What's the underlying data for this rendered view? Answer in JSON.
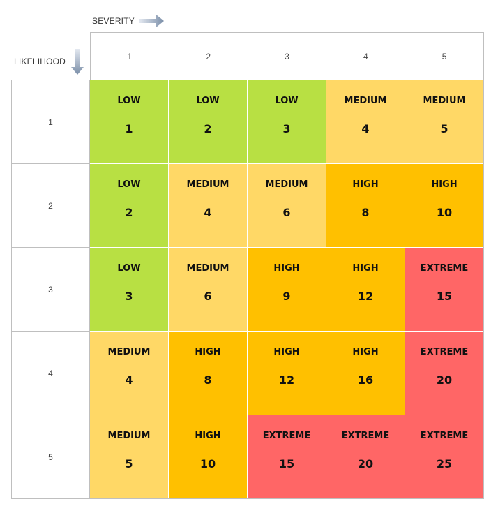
{
  "labels": {
    "severity": "SEVERITY",
    "likelihood": "LIKELIHOOD"
  },
  "columns": [
    "1",
    "2",
    "3",
    "4",
    "5"
  ],
  "rows": [
    {
      "label": "1",
      "cells": [
        {
          "level": "LOW",
          "score": "1"
        },
        {
          "level": "LOW",
          "score": "2"
        },
        {
          "level": "LOW",
          "score": "3"
        },
        {
          "level": "MEDIUM",
          "score": "4"
        },
        {
          "level": "MEDIUM",
          "score": "5"
        }
      ]
    },
    {
      "label": "2",
      "cells": [
        {
          "level": "LOW",
          "score": "2"
        },
        {
          "level": "MEDIUM",
          "score": "4"
        },
        {
          "level": "MEDIUM",
          "score": "6"
        },
        {
          "level": "HIGH",
          "score": "8"
        },
        {
          "level": "HIGH",
          "score": "10"
        }
      ]
    },
    {
      "label": "3",
      "cells": [
        {
          "level": "LOW",
          "score": "3"
        },
        {
          "level": "MEDIUM",
          "score": "6"
        },
        {
          "level": "HIGH",
          "score": "9"
        },
        {
          "level": "HIGH",
          "score": "12"
        },
        {
          "level": "EXTREME",
          "score": "15"
        }
      ]
    },
    {
      "label": "4",
      "cells": [
        {
          "level": "MEDIUM",
          "score": "4"
        },
        {
          "level": "HIGH",
          "score": "8"
        },
        {
          "level": "HIGH",
          "score": "12"
        },
        {
          "level": "HIGH",
          "score": "16"
        },
        {
          "level": "EXTREME",
          "score": "20"
        }
      ]
    },
    {
      "label": "5",
      "cells": [
        {
          "level": "MEDIUM",
          "score": "5"
        },
        {
          "level": "HIGH",
          "score": "10"
        },
        {
          "level": "EXTREME",
          "score": "15"
        },
        {
          "level": "EXTREME",
          "score": "20"
        },
        {
          "level": "EXTREME",
          "score": "25"
        }
      ]
    }
  ],
  "colors": {
    "LOW": "#b8e043",
    "MEDIUM": "#ffd866",
    "HIGH": "#ffc000",
    "EXTREME": "#ff6666",
    "arrow": "#8497b0"
  }
}
